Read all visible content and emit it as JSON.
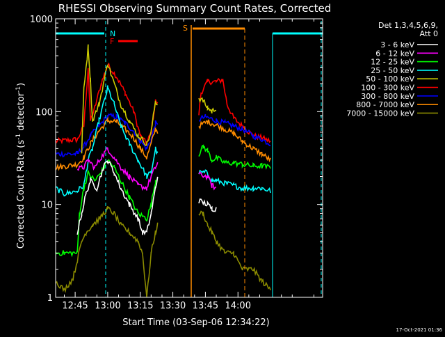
{
  "chart_data": {
    "type": "line",
    "title": "RHESSI Observing Summary Count Rates, Corrected",
    "xlabel": "Start Time (03-Sep-06 12:34:22)",
    "ylabel": "Corrected Count Rate (s⁻¹ detector⁻¹)",
    "ylabel_parts": {
      "main": "Corrected Count Rate (s",
      "sup1": "-1",
      "mid": " detector",
      "sup2": "-1",
      "end": ")"
    },
    "yscale": "log",
    "ylim": [
      1,
      1000
    ],
    "yticks": [
      1,
      10,
      100,
      1000
    ],
    "ytick_labels": [
      "1",
      "10",
      "100",
      "1000"
    ],
    "xlim_minutes": [
      36,
      159
    ],
    "xticks_minutes": [
      45,
      60,
      75,
      90,
      105,
      120
    ],
    "xtick_labels": [
      "12:45",
      "13:00",
      "13:15",
      "13:30",
      "13:45",
      "14:00"
    ],
    "x_unit": "minutes after 12:00 on 03-Sep-06",
    "legend": {
      "position": "right",
      "header1": "Det 1,3,4,5,6,9,",
      "header2": "Att 0"
    },
    "series": [
      {
        "name": "3 - 6 keV",
        "color": "#ffffff"
      },
      {
        "name": "6 - 12 keV",
        "color": "#ff00ff"
      },
      {
        "name": "12 - 25 keV",
        "color": "#00ff00"
      },
      {
        "name": "25 - 50 keV",
        "color": "#00ffff"
      },
      {
        "name": "50 - 100 keV",
        "color": "#cccc00"
      },
      {
        "name": "100 - 300 keV",
        "color": "#ff0000"
      },
      {
        "name": "300 - 800 keV",
        "color": "#0000ff"
      },
      {
        "name": "800 - 7000 keV",
        "color": "#ff8c00"
      },
      {
        "name": "7000 - 15000 keV",
        "color": "#8b8b00"
      }
    ],
    "curve_series": [
      {
        "legend_index": 5,
        "color": "#ff0000",
        "anchors": [
          [
            36,
            48
          ],
          [
            46,
            50
          ],
          [
            49,
            70
          ],
          [
            51,
            300
          ],
          [
            52,
            80
          ],
          [
            54,
            110
          ],
          [
            57,
            200
          ],
          [
            60,
            320
          ],
          [
            64,
            240
          ],
          [
            68,
            160
          ],
          [
            72,
            100
          ],
          [
            75,
            55
          ],
          [
            78,
            45
          ],
          [
            80,
            60
          ],
          [
            82,
            130
          ],
          [
            83,
            120
          ],
          [
            null,
            null
          ],
          [
            102,
            95
          ],
          [
            103,
            160
          ],
          [
            106,
            210
          ],
          [
            110,
            210
          ],
          [
            113,
            220
          ],
          [
            115,
            120
          ],
          [
            118,
            85
          ],
          [
            122,
            70
          ],
          [
            127,
            55
          ],
          [
            131,
            52
          ],
          [
            135,
            48
          ]
        ]
      },
      {
        "legend_index": 6,
        "color": "#0000ff",
        "anchors": [
          [
            36,
            35
          ],
          [
            46,
            35
          ],
          [
            49,
            42
          ],
          [
            52,
            55
          ],
          [
            56,
            70
          ],
          [
            60,
            90
          ],
          [
            64,
            88
          ],
          [
            68,
            75
          ],
          [
            72,
            62
          ],
          [
            75,
            48
          ],
          [
            78,
            40
          ],
          [
            80,
            50
          ],
          [
            82,
            75
          ],
          [
            83,
            70
          ],
          [
            null,
            null
          ],
          [
            102,
            82
          ],
          [
            105,
            88
          ],
          [
            110,
            80
          ],
          [
            114,
            75
          ],
          [
            118,
            70
          ],
          [
            122,
            65
          ],
          [
            127,
            55
          ],
          [
            131,
            50
          ],
          [
            135,
            45
          ]
        ]
      },
      {
        "legend_index": 7,
        "color": "#ff8c00",
        "anchors": [
          [
            36,
            25
          ],
          [
            46,
            27
          ],
          [
            49,
            32
          ],
          [
            52,
            45
          ],
          [
            56,
            62
          ],
          [
            60,
            80
          ],
          [
            64,
            78
          ],
          [
            68,
            65
          ],
          [
            72,
            52
          ],
          [
            75,
            40
          ],
          [
            78,
            32
          ],
          [
            80,
            45
          ],
          [
            82,
            65
          ],
          [
            83,
            60
          ],
          [
            null,
            null
          ],
          [
            102,
            70
          ],
          [
            106,
            78
          ],
          [
            110,
            72
          ],
          [
            114,
            65
          ],
          [
            118,
            58
          ],
          [
            122,
            48
          ],
          [
            127,
            40
          ],
          [
            131,
            35
          ],
          [
            135,
            30
          ]
        ]
      },
      {
        "legend_index": 3,
        "color": "#00ffff",
        "anchors": [
          [
            36,
            15
          ],
          [
            40,
            13
          ],
          [
            46,
            14
          ],
          [
            49,
            16
          ],
          [
            51,
            30
          ],
          [
            53,
            40
          ],
          [
            56,
            80
          ],
          [
            60,
            180
          ],
          [
            63,
            120
          ],
          [
            66,
            70
          ],
          [
            70,
            45
          ],
          [
            74,
            30
          ],
          [
            78,
            20
          ],
          [
            80,
            22
          ],
          [
            82,
            40
          ],
          [
            83,
            35
          ],
          [
            null,
            null
          ],
          [
            102,
            22
          ],
          [
            106,
            22
          ],
          [
            108,
            18
          ],
          [
            110,
            18
          ],
          [
            114,
            17
          ],
          [
            118,
            16
          ],
          [
            122,
            15
          ],
          [
            127,
            15
          ],
          [
            131,
            15
          ],
          [
            135,
            14
          ]
        ]
      },
      {
        "legend_index": 4,
        "color": "#cccc00",
        "anchors": [
          [
            48,
            35
          ],
          [
            49,
            180
          ],
          [
            51,
            500
          ],
          [
            52,
            220
          ],
          [
            53,
            80
          ],
          [
            56,
            120
          ],
          [
            60,
            330
          ],
          [
            63,
            200
          ],
          [
            66,
            120
          ],
          [
            70,
            80
          ],
          [
            74,
            55
          ],
          [
            78,
            45
          ],
          [
            80,
            60
          ],
          [
            82,
            130
          ],
          [
            83,
            120
          ],
          [
            null,
            null
          ],
          [
            102,
            140
          ],
          [
            104,
            130
          ],
          [
            106,
            110
          ],
          [
            108,
            100
          ],
          [
            110,
            110
          ]
        ]
      },
      {
        "legend_index": 1,
        "color": "#ff00ff",
        "anchors": [
          [
            46,
            24
          ],
          [
            49,
            25
          ],
          [
            51,
            30
          ],
          [
            54,
            25
          ],
          [
            57,
            32
          ],
          [
            60,
            40
          ],
          [
            63,
            32
          ],
          [
            66,
            25
          ],
          [
            70,
            20
          ],
          [
            74,
            16
          ],
          [
            78,
            15
          ],
          [
            80,
            20
          ],
          [
            82,
            25
          ],
          [
            83,
            28
          ],
          [
            null,
            null
          ],
          [
            102,
            21
          ],
          [
            106,
            20
          ],
          [
            108,
            16
          ],
          [
            110,
            15
          ]
        ]
      },
      {
        "legend_index": 2,
        "color": "#00ff00",
        "anchors": [
          [
            36,
            3
          ],
          [
            40,
            3
          ],
          [
            46,
            3
          ],
          [
            47,
            8
          ],
          [
            49,
            15
          ],
          [
            51,
            22
          ],
          [
            54,
            18
          ],
          [
            57,
            22
          ],
          [
            60,
            30
          ],
          [
            63,
            25
          ],
          [
            66,
            18
          ],
          [
            70,
            12
          ],
          [
            74,
            8
          ],
          [
            78,
            7
          ],
          [
            80,
            10
          ],
          [
            82,
            18
          ],
          [
            83,
            20
          ],
          [
            null,
            null
          ],
          [
            102,
            35
          ],
          [
            104,
            42
          ],
          [
            106,
            38
          ],
          [
            108,
            30
          ],
          [
            110,
            32
          ],
          [
            114,
            28
          ],
          [
            118,
            28
          ],
          [
            122,
            27
          ],
          [
            127,
            26
          ],
          [
            131,
            26
          ],
          [
            135,
            25
          ]
        ]
      },
      {
        "legend_index": 0,
        "color": "#ffffff",
        "anchors": [
          [
            46,
            5
          ],
          [
            48,
            8
          ],
          [
            50,
            13
          ],
          [
            52,
            18
          ],
          [
            55,
            15
          ],
          [
            58,
            25
          ],
          [
            60,
            30
          ],
          [
            63,
            22
          ],
          [
            66,
            15
          ],
          [
            70,
            10
          ],
          [
            74,
            7
          ],
          [
            76,
            5
          ],
          [
            78,
            5
          ],
          [
            80,
            8
          ],
          [
            82,
            15
          ],
          [
            83,
            20
          ],
          [
            null,
            null
          ],
          [
            102,
            11
          ],
          [
            106,
            10
          ],
          [
            108,
            9
          ],
          [
            110,
            9
          ]
        ]
      },
      {
        "legend_index": 8,
        "color": "#8b8b00",
        "anchors": [
          [
            36,
            1.5
          ],
          [
            40,
            1.2
          ],
          [
            44,
            1.6
          ],
          [
            46,
            2.5
          ],
          [
            48,
            4
          ],
          [
            50,
            5
          ],
          [
            53,
            6
          ],
          [
            56,
            7
          ],
          [
            60,
            9
          ],
          [
            63,
            8
          ],
          [
            66,
            6
          ],
          [
            70,
            5
          ],
          [
            74,
            4
          ],
          [
            76,
            3
          ],
          [
            78,
            1
          ],
          [
            80,
            3
          ],
          [
            82,
            5
          ],
          [
            83,
            6
          ],
          [
            null,
            null
          ],
          [
            102,
            8
          ],
          [
            104,
            8
          ],
          [
            106,
            6
          ],
          [
            108,
            5
          ],
          [
            110,
            4
          ],
          [
            114,
            3
          ],
          [
            118,
            3
          ],
          [
            122,
            2
          ],
          [
            127,
            2
          ],
          [
            131,
            1.5
          ],
          [
            135,
            1.2
          ]
        ]
      }
    ],
    "attenuator_markers": [
      {
        "label": "N",
        "color": "#00ffff",
        "position": "near 12:51",
        "kind": "dashed"
      },
      {
        "label": "F",
        "color": "#ff0000",
        "position": "near 12:54",
        "kind": "flag"
      },
      {
        "label": "S",
        "color": "#ff8c00",
        "position": "near 13:22",
        "kind": "solid"
      }
    ],
    "footer_text": "17-Oct-2021 01:36"
  }
}
